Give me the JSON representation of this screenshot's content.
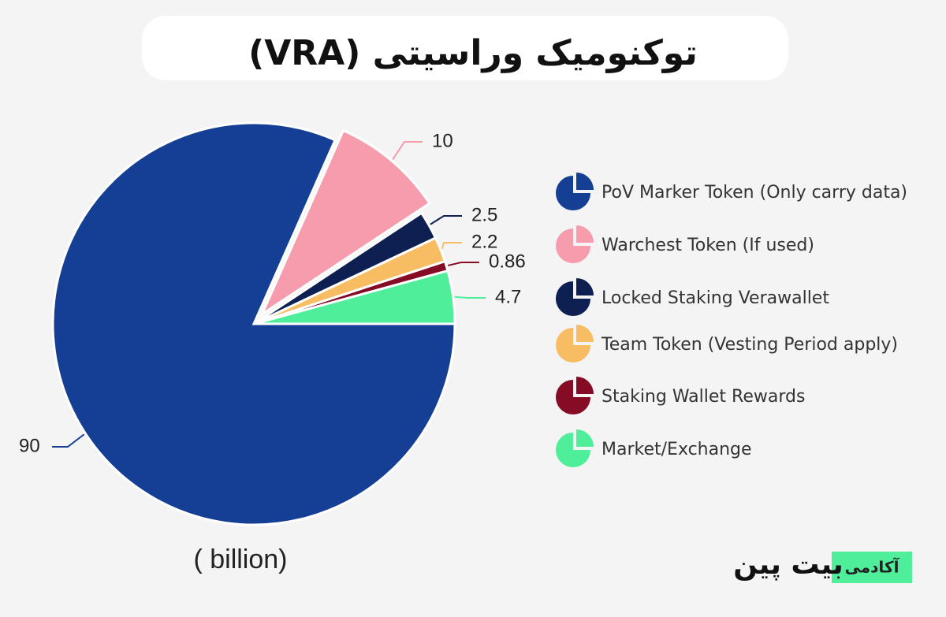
{
  "chart_data": {
    "type": "pie",
    "title": "توکنومیک وراسیتی (VRA)",
    "unit_label": "( billion)",
    "categories": [
      "PoV Marker Token (Only carry data)",
      "Warchest Token (If used)",
      "Locked Staking Verawallet",
      "Team Token (Vesting Period apply)",
      "Staking Wallet Rewards",
      "Market/Exchange"
    ],
    "values": [
      90,
      10,
      2.5,
      2.2,
      0.86,
      4.7
    ],
    "colors": [
      "#143f94",
      "#f79cac",
      "#0e1f52",
      "#f8bd62",
      "#860b25",
      "#4fee9b"
    ],
    "legend": "right"
  },
  "brand": {
    "label": "آکادمی",
    "name": "بیت پین"
  }
}
